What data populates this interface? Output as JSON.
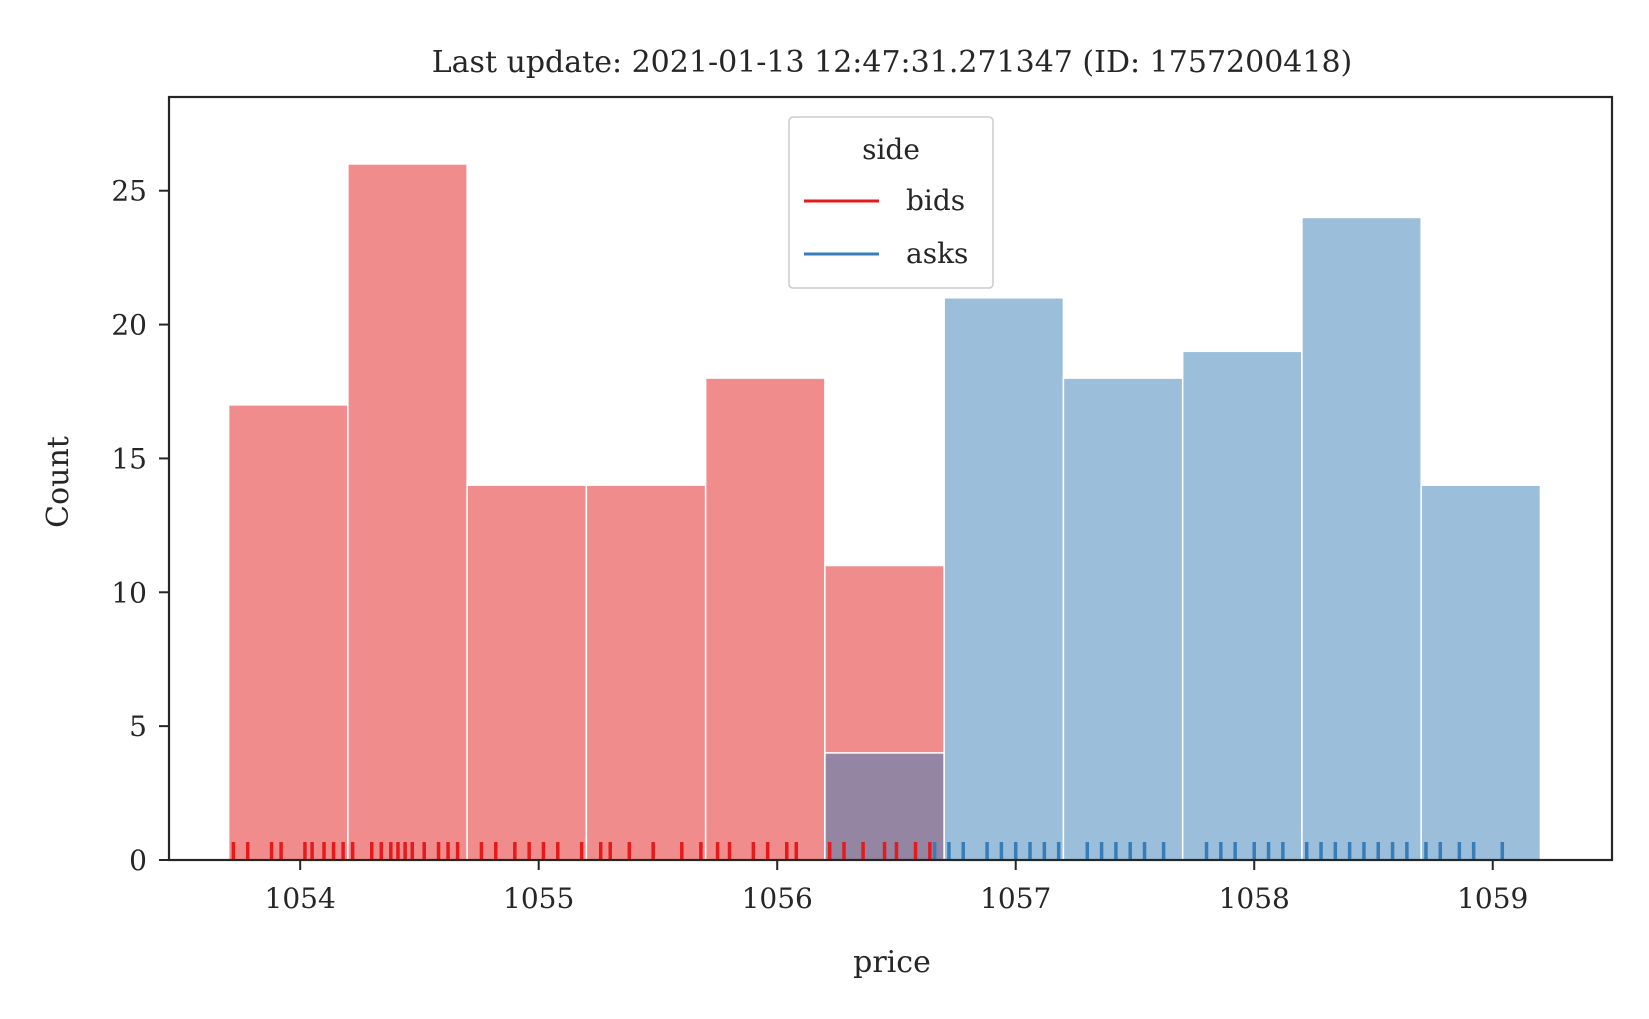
{
  "chart_data": {
    "type": "histogram",
    "title": "Last update: 2021-01-13 12:47:31.271347 (ID: 1757200418)",
    "xlabel": "price",
    "ylabel": "Count",
    "xlim": [
      1053.45,
      1059.5
    ],
    "ylim": [
      0,
      28.5
    ],
    "x_ticks": [
      "1054",
      "1055",
      "1056",
      "1057",
      "1058",
      "1059"
    ],
    "y_ticks": [
      "0",
      "5",
      "10",
      "15",
      "20",
      "25"
    ],
    "grid": false,
    "legend": {
      "title": "side",
      "placement": "top-center"
    },
    "series": [
      {
        "name": "bids",
        "color": "#e41a1c",
        "bins": [
          {
            "x0": 1053.7,
            "x1": 1054.2,
            "count": 17
          },
          {
            "x0": 1054.2,
            "x1": 1054.7,
            "count": 26
          },
          {
            "x0": 1054.7,
            "x1": 1055.2,
            "count": 14
          },
          {
            "x0": 1055.2,
            "x1": 1055.7,
            "count": 14
          },
          {
            "x0": 1055.7,
            "x1": 1056.2,
            "count": 18
          },
          {
            "x0": 1056.2,
            "x1": 1056.7,
            "count": 11
          }
        ],
        "rug": [
          1053.72,
          1053.78,
          1053.88,
          1053.92,
          1054.02,
          1054.05,
          1054.1,
          1054.14,
          1054.18,
          1054.22,
          1054.3,
          1054.34,
          1054.38,
          1054.41,
          1054.44,
          1054.47,
          1054.52,
          1054.58,
          1054.62,
          1054.66,
          1054.76,
          1054.82,
          1054.9,
          1054.96,
          1055.02,
          1055.08,
          1055.18,
          1055.26,
          1055.3,
          1055.38,
          1055.48,
          1055.6,
          1055.68,
          1055.75,
          1055.8,
          1055.9,
          1055.96,
          1056.04,
          1056.08,
          1056.22,
          1056.28,
          1056.36,
          1056.45,
          1056.5,
          1056.58,
          1056.64
        ]
      },
      {
        "name": "asks",
        "color": "#377eb8",
        "bins": [
          {
            "x0": 1056.2,
            "x1": 1056.7,
            "count": 4
          },
          {
            "x0": 1056.7,
            "x1": 1057.2,
            "count": 21
          },
          {
            "x0": 1057.2,
            "x1": 1057.7,
            "count": 18
          },
          {
            "x0": 1057.7,
            "x1": 1058.2,
            "count": 19
          },
          {
            "x0": 1058.2,
            "x1": 1058.7,
            "count": 24
          },
          {
            "x0": 1058.7,
            "x1": 1059.2,
            "count": 14
          }
        ],
        "rug": [
          1056.66,
          1056.72,
          1056.78,
          1056.88,
          1056.94,
          1057.0,
          1057.06,
          1057.12,
          1057.18,
          1057.3,
          1057.36,
          1057.42,
          1057.48,
          1057.54,
          1057.62,
          1057.8,
          1057.86,
          1057.92,
          1058.0,
          1058.06,
          1058.12,
          1058.22,
          1058.28,
          1058.34,
          1058.4,
          1058.46,
          1058.52,
          1058.58,
          1058.64,
          1058.72,
          1058.78,
          1058.86,
          1058.92,
          1059.04
        ]
      }
    ]
  }
}
